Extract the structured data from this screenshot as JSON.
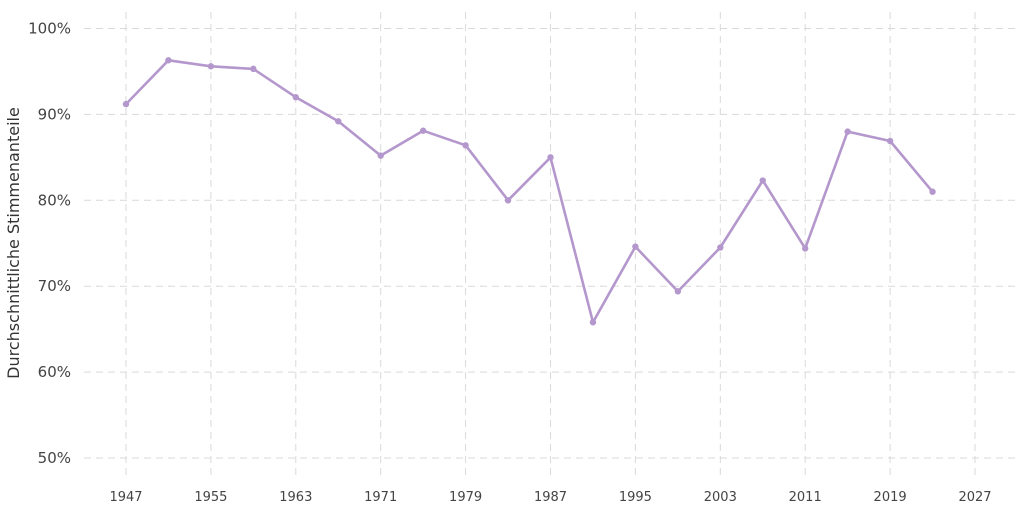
{
  "chart_data": {
    "type": "line",
    "title": "",
    "xlabel": "",
    "ylabel": "Durchschnittliche Stimmenanteile",
    "xlim": [
      1942,
      2030
    ],
    "ylim": [
      48,
      102
    ],
    "x_ticks": [
      1947,
      1955,
      1963,
      1971,
      1979,
      1987,
      1995,
      2003,
      2011,
      2019,
      2027
    ],
    "y_ticks": [
      50,
      60,
      70,
      80,
      90,
      100
    ],
    "y_tick_labels": [
      "50%",
      "60%",
      "70%",
      "80%",
      "90%",
      "100%"
    ],
    "grid": true,
    "legend": "none",
    "series": [
      {
        "color": "#b497cc",
        "points": [
          {
            "x": 1947,
            "y": 91.2
          },
          {
            "x": 1951,
            "y": 96.3
          },
          {
            "x": 1955,
            "y": 95.6
          },
          {
            "x": 1959,
            "y": 95.3
          },
          {
            "x": 1963,
            "y": 92.0
          },
          {
            "x": 1967,
            "y": 89.2
          },
          {
            "x": 1971,
            "y": 85.2
          },
          {
            "x": 1975,
            "y": 88.1
          },
          {
            "x": 1979,
            "y": 86.4
          },
          {
            "x": 1983,
            "y": 80.0
          },
          {
            "x": 1987,
            "y": 85.0
          },
          {
            "x": 1991,
            "y": 65.8
          },
          {
            "x": 1995,
            "y": 74.6
          },
          {
            "x": 1999,
            "y": 69.4
          },
          {
            "x": 2003,
            "y": 74.5
          },
          {
            "x": 2007,
            "y": 82.3
          },
          {
            "x": 2011,
            "y": 74.4
          },
          {
            "x": 2015,
            "y": 88.0
          },
          {
            "x": 2019,
            "y": 86.9
          },
          {
            "x": 2023,
            "y": 81.0
          }
        ]
      }
    ]
  }
}
